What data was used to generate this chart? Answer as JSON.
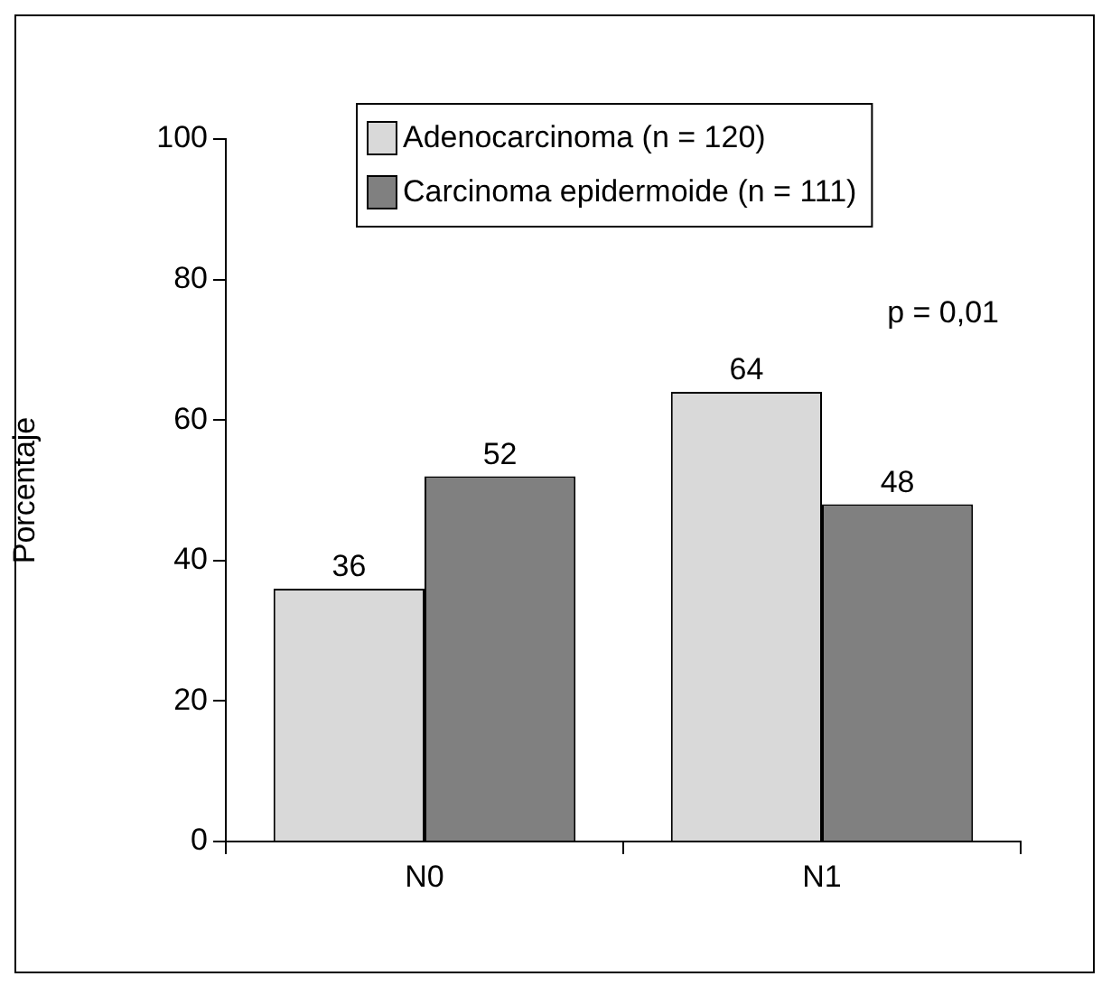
{
  "chart_data": {
    "type": "bar",
    "ylabel": "Porcentaje",
    "categories": [
      "N0",
      "N1"
    ],
    "series": [
      {
        "name": "Adenocarcinoma (n = 120)",
        "color": "#d9d9d9",
        "values": [
          36,
          64
        ]
      },
      {
        "name": "Carcinoma epidermoide (n = 111)",
        "color": "#808080",
        "values": [
          52,
          48
        ]
      }
    ],
    "ylim": [
      0,
      100
    ],
    "yticks": [
      0,
      20,
      40,
      60,
      80,
      100
    ],
    "grid": false,
    "legend": "top left",
    "data_labels": true,
    "annotations": [
      "p = 0,01"
    ]
  }
}
